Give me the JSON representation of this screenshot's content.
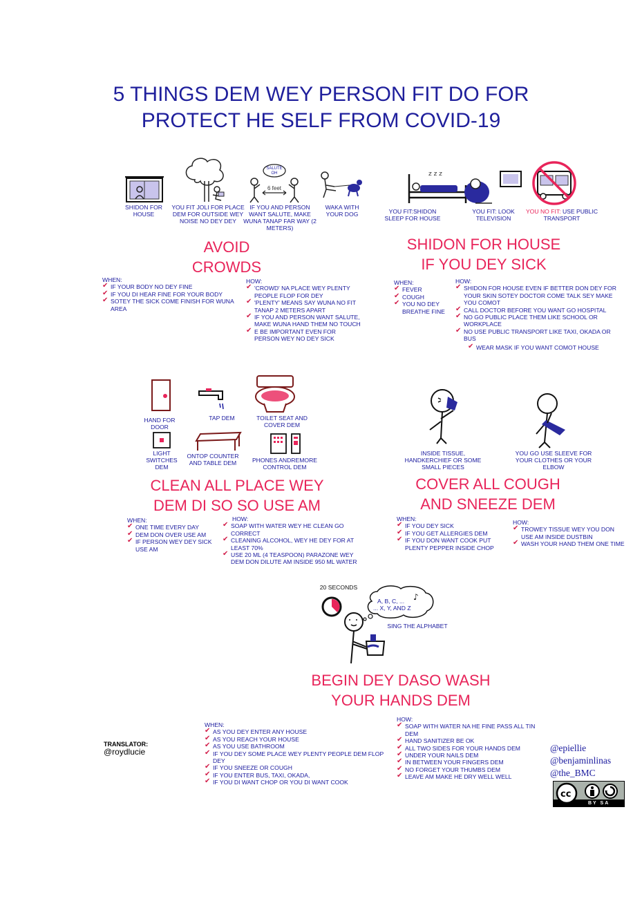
{
  "title": {
    "line1": "5 THINGS DEM WEY PERSON FIT DO FOR",
    "line2": "PROTECT HE SELF FROM COVID-19"
  },
  "avoid": {
    "title1": "AVOID",
    "title2": "CROWDS",
    "captions": {
      "shidon": "SHIDON FOR HOUSE",
      "joli": "YOU FIT JOLI FOR PLACE DEM FOR OUTSIDE WEY NOISE NO DEY DEY",
      "salute": "IF YOU AND PERSON WANT SALUTE, MAKE WUNA TANAP FAR WAY (2 METERS)",
      "waka": "WAKA WITH YOUR DOG",
      "bubble": "SALUTE OH",
      "distance": "6 feet"
    },
    "when_label": "WHEN:",
    "when": [
      "IF YOUR BODY NO DEY FINE",
      "IF YOU DI HEAR FINE FOR YOUR BODY",
      "SOTEY THE SICK COME FINISH FOR WUNA AREA"
    ],
    "how_label": "HOW:",
    "how_intro": "'CROWD' NA PLACE WEY PLENTY PEOPLE FLOP FOR DEY",
    "how": [
      "'PLENTY' MEANS SAY WUNA NO FIT TANAP 2 METERS APART",
      "IF YOU AND PERSON WANT SALUTE, MAKE WUNA HAND THEM NO TOUCH",
      "E BE IMPORTANT EVEN FOR PERSON WEY NO DEY SICK"
    ]
  },
  "sick": {
    "title1": "SHIDON FOR HOUSE",
    "title2": "IF YOU DEY SICK",
    "captions": {
      "sleep": "YOU FIT:SHIDON SLEEP FOR HOUSE",
      "tv": "YOU FIT: LOOK TELEVISION",
      "transport": "YOU NO FIT: USE PUBLIC TRANSPORT",
      "transport_red": "YOU NO FIT:",
      "transport_blue": "USE PUBLIC TRANSPORT"
    },
    "when_label": "WHEN:",
    "when": [
      "FEVER",
      "COUGH",
      "YOU NO DEY BREATHE FINE"
    ],
    "how_label": "HOW:",
    "how": [
      "SHIDON FOR HOUSE EVEN IF BETTER DON DEY FOR YOUR SKIN SOTEY DOCTOR COME TALK SEY MAKE YOU COMOT",
      "CALL DOCTOR BEFORE YOU WANT GO HOSPITAL",
      "NO GO PUBLIC PLACE THEM LIKE SCHOOL OR WORKPLACE",
      "NO USE PUBLIC TRANSPORT LIKE TAXI, OKADA OR BUS",
      "WEAR MASK IF YOU WANT COMOT HOUSE"
    ]
  },
  "clean": {
    "title1": "CLEAN ALL PLACE WEY",
    "title2": "DEM DI SO SO USE AM",
    "captions": {
      "door": "HAND FOR DOOR",
      "tap": "TAP DEM",
      "toilet": "TOILET SEAT AND COVER DEM",
      "light": "LIGHT SWITCHES DEM",
      "counter": "ONTOP COUNTER AND TABLE DEM",
      "phones": "PHONES ANDREMORE CONTROL DEM"
    },
    "when_label": "WHEN:",
    "when": [
      "ONE TIME EVERY DAY",
      "DEM DON OVER USE AM",
      "IF PERSON WEY DEY SICK USE AM"
    ],
    "how_label": "HOW:",
    "how": [
      "SOAP WITH WATER WEY HE CLEAN GO CORRECT",
      "CLEANING ALCOHOL, WEY HE DEY FOR AT LEAST 70%",
      "USE 20 ML (4 TEASPOON) PARAZONE WEY DEM DON DILUTE AM INSIDE 950 ML WATER"
    ]
  },
  "cover": {
    "title1": "COVER ALL COUGH",
    "title2": "AND SNEEZE DEM",
    "captions": {
      "tissue": "INSIDE TISSUE, HANDKERCHIEF OR SOME SMALL PIECES",
      "sleeve": "YOU GO USE SLEEVE FOR YOUR CLOTHES OR YOUR ELBOW"
    },
    "when_label": "WHEN:",
    "when": [
      "IF YOU DEY SICK",
      "IF YOU GET ALLERGIES DEM",
      "IF YOU DON WANT COOK PUT PLENTY PEPPER INSIDE CHOP"
    ],
    "how_label": "HOW:",
    "how": [
      "TROWEY TISSUE WEY YOU DON USE AM INSIDE DUSTBIN",
      "WASH YOUR HAND THEM ONE TIME"
    ]
  },
  "wash": {
    "title1": "BEGIN DEY DASO WASH",
    "title2": "YOUR HANDS DEM",
    "captions": {
      "seconds": "20 SECONDS",
      "thought1": "A, B, C, ...",
      "thought2": "... X, Y, AND Z",
      "sing": "SING THE ALPHABET"
    },
    "when_label": "WHEN:",
    "when": [
      "AS YOU DEY ENTER ANY HOUSE",
      "AS YOU REACH YOUR HOUSE",
      "AS YOU USE BATHROOM",
      "IF YOU DEY SOME PLACE WEY PLENTY PEOPLE DEM FLOP DEY",
      "IF YOU SNEEZE OR COUGH",
      "IF YOU ENTER BUS, TAXI, OKADA,",
      "IF YOU DI WANT CHOP OR YOU DI WANT COOK"
    ],
    "how_label": "HOW:",
    "how": [
      "SOAP WITH WATER NA HE FINE PASS ALL TIN DEM",
      "HAND SANITIZER BE OK",
      "ALL TWO SIDES FOR YOUR HANDS DEM",
      "UNDER YOUR NAILS DEM",
      "IN BETWEEN YOUR FINGERS DEM",
      "NO FORGET YOUR THUMBS DEM",
      "LEAVE AM MAKE HE DRY WELL WELL"
    ]
  },
  "translator": {
    "label": "TRANSLATOR:",
    "handle": "@roydlucie"
  },
  "credits": [
    "@epiellie",
    "@benjaminlinas",
    "@the_BMC"
  ],
  "license": {
    "text": "BY  SA",
    "cc": "cc"
  },
  "colors": {
    "title": "#1f1f9c",
    "section": "#e8245a",
    "text": "#1a1a9e",
    "check": "#d21e4a"
  }
}
